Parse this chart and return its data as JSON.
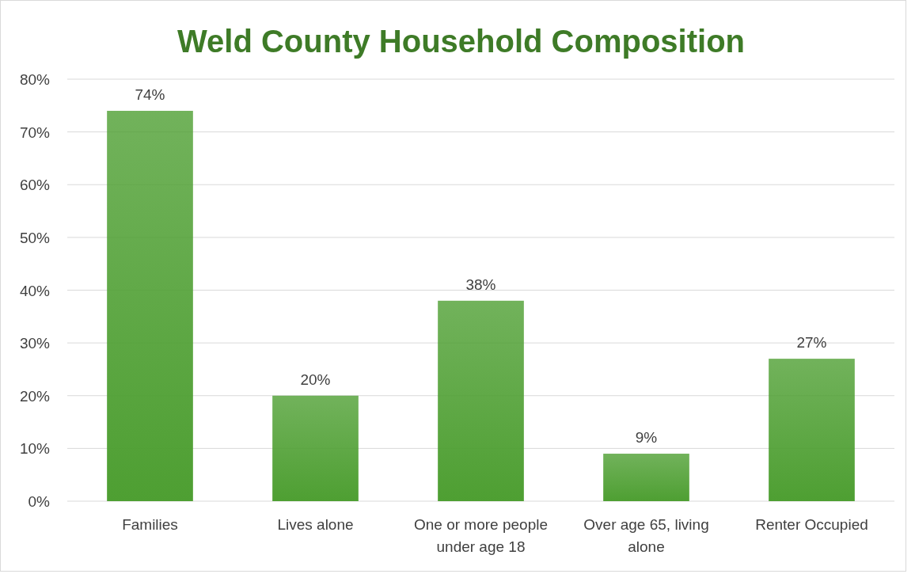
{
  "chart_data": {
    "type": "bar",
    "title": "Weld County Household Composition",
    "categories": [
      "Families",
      "Lives alone",
      "One or more people under age 18",
      "Over age 65, living alone",
      "Renter Occupied"
    ],
    "values": [
      74,
      20,
      38,
      9,
      27
    ],
    "value_labels": [
      "74%",
      "20%",
      "38%",
      "9%",
      "27%"
    ],
    "color": "#4e9f32",
    "ylim": [
      0,
      80
    ],
    "yticks": [
      {
        "value": 0,
        "label": "0%"
      },
      {
        "value": 10,
        "label": "10%"
      },
      {
        "value": 20,
        "label": "20%"
      },
      {
        "value": 30,
        "label": "30%"
      },
      {
        "value": 40,
        "label": "40%"
      },
      {
        "value": 50,
        "label": "50%"
      },
      {
        "value": 60,
        "label": "60%"
      },
      {
        "value": 70,
        "label": "70%"
      },
      {
        "value": 80,
        "label": "80%"
      }
    ],
    "grid": "y"
  }
}
